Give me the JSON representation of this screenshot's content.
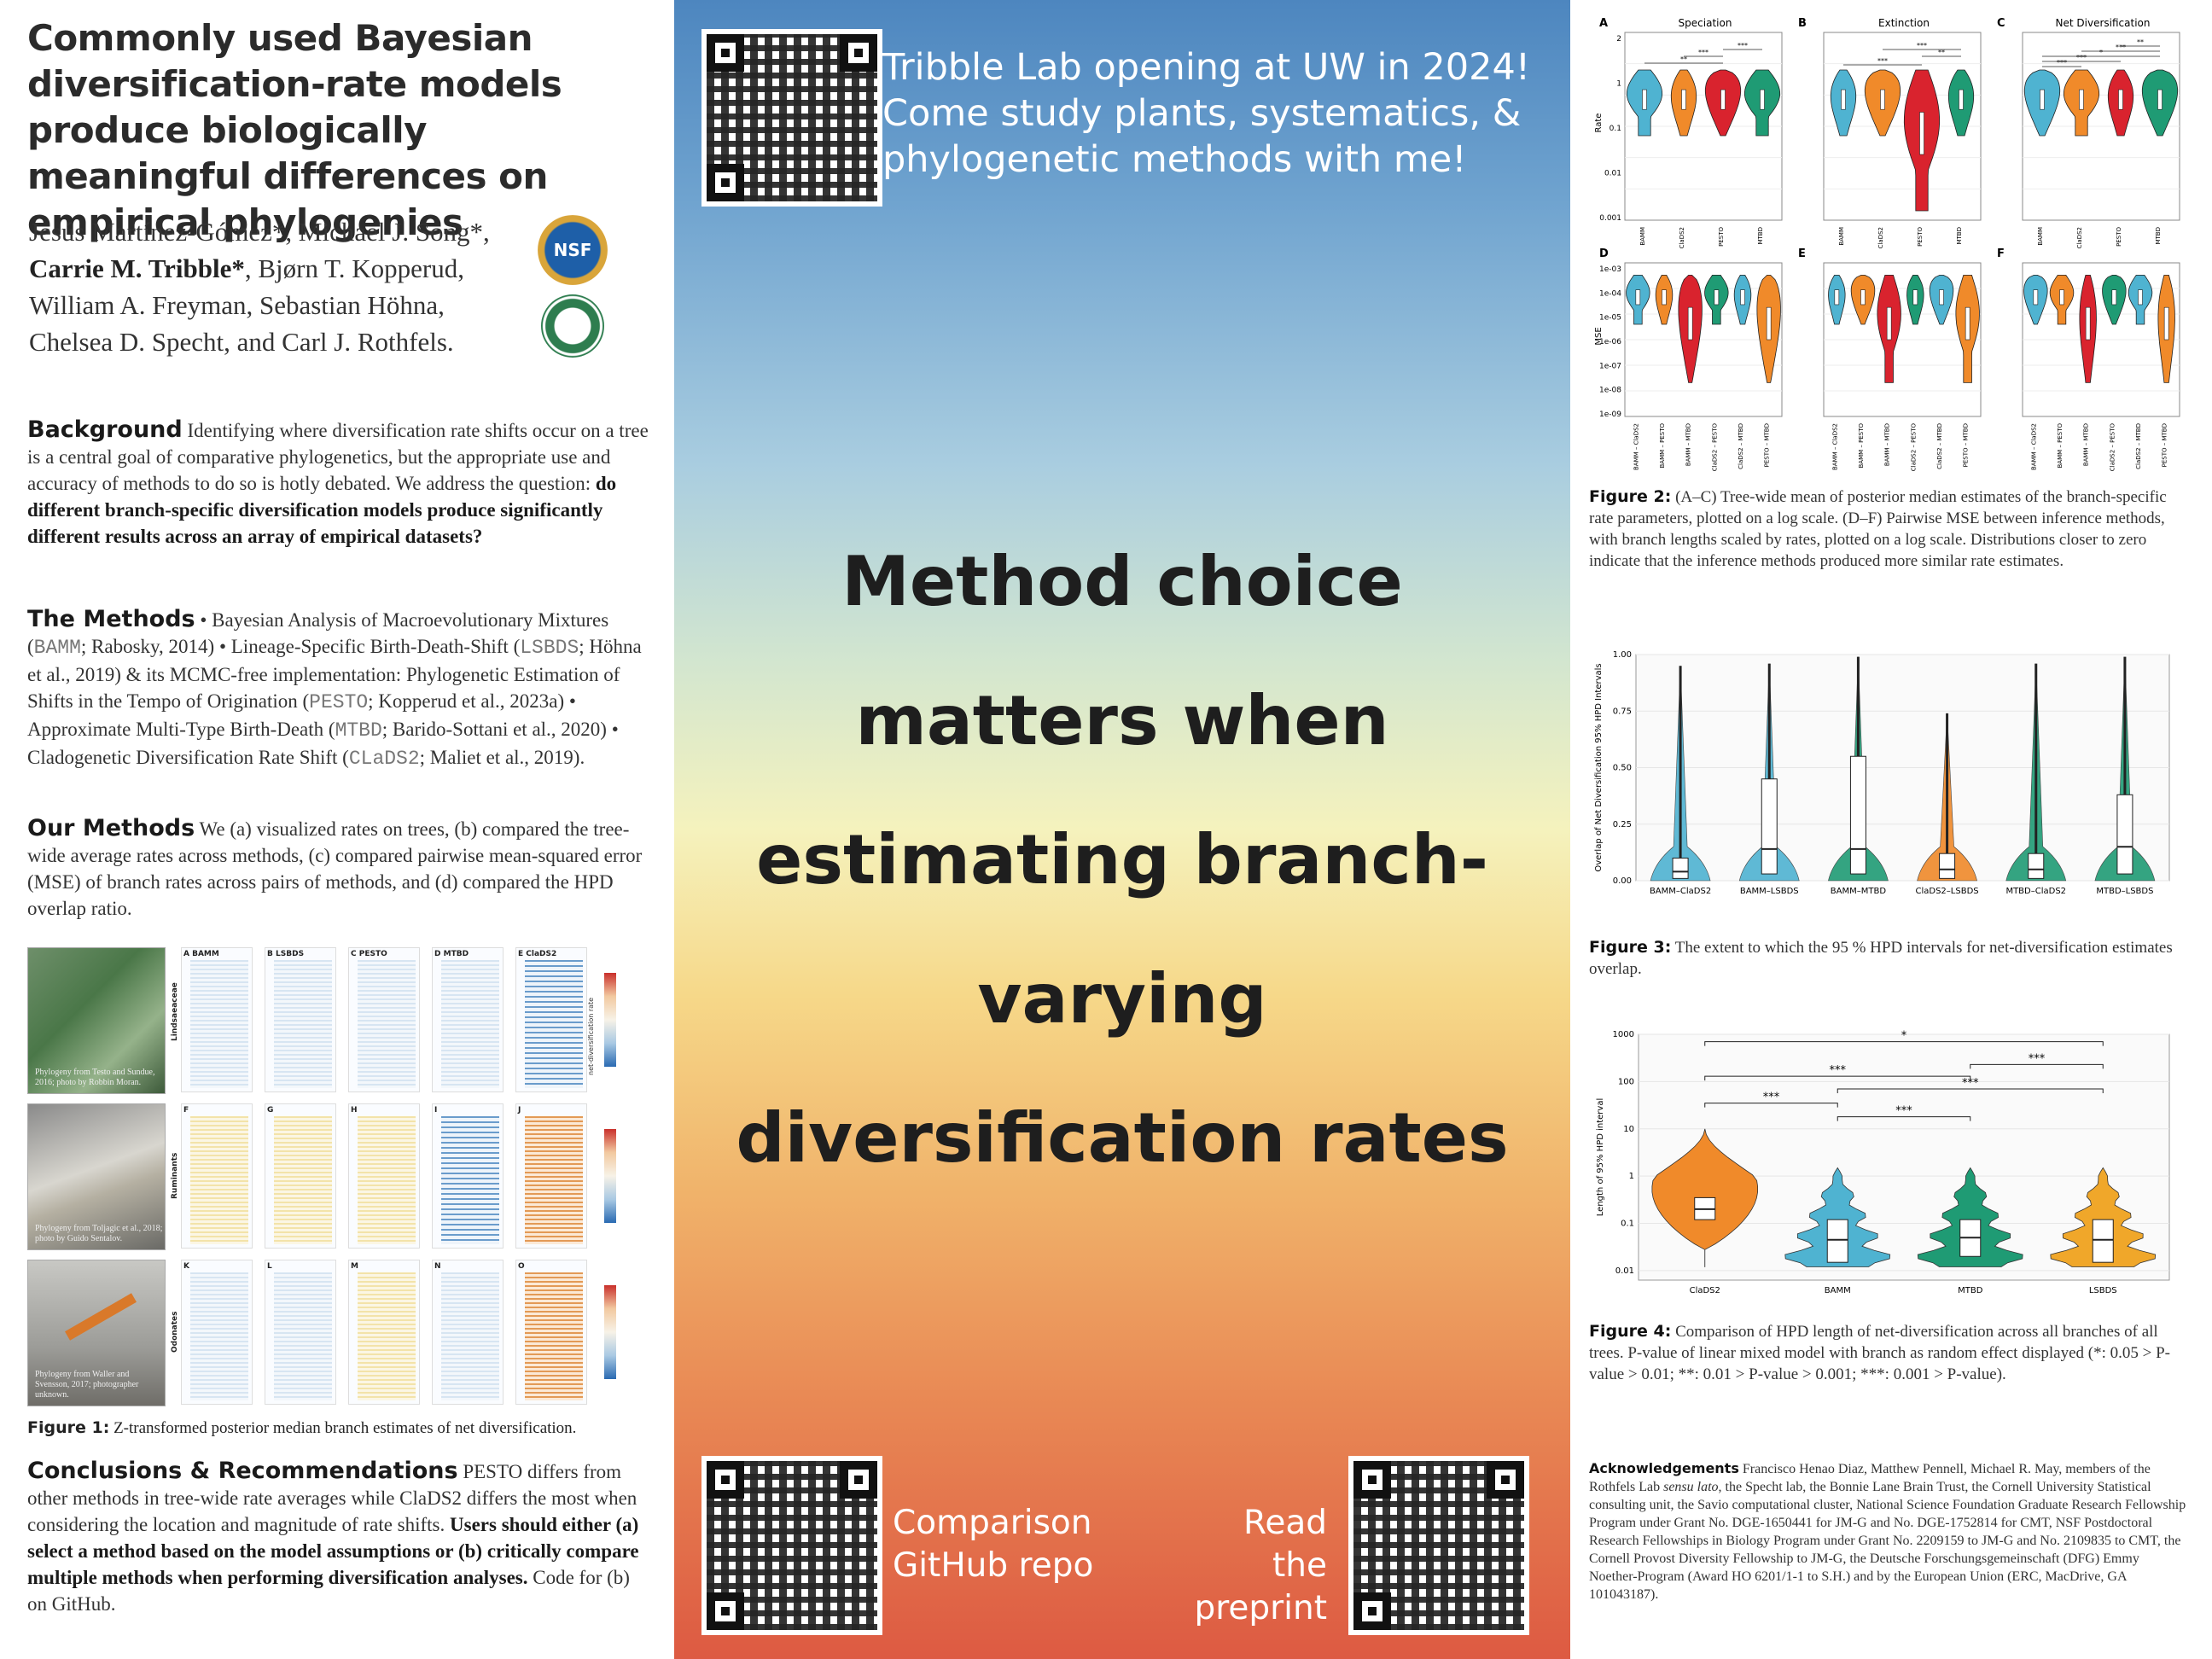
{
  "title": "Commonly used Bayesian diversification-rate models produce biologically meaningful differences on empirical phylogenies",
  "authors": {
    "line1": "Jesús Martínez-Gómez*, Michael J. Song*,",
    "line2_bold": "Carrie M. Tribble*",
    "line2_rest": ", Bjørn T. Kopperud,",
    "line3": "William A. Freyman, Sebastian Höhna,",
    "line4": "Chelsea D. Specht, and Carl J. Rothfels."
  },
  "logos": {
    "nsf": "NSF"
  },
  "background": {
    "heading": "Background",
    "text": " Identifying where diversification rate shifts occur on a tree is a central goal of comparative phylogenetics, but the appropriate use and accuracy of methods to do so is hotly debated. We address the question: ",
    "bold": "do different branch-specific diversification models produce significantly different results across an array of empirical datasets?"
  },
  "methods": {
    "heading": "The Methods",
    "t1": " • Bayesian Analysis of Macroevolutionary Mixtures (",
    "m1": "BAMM",
    "t2": "; Rabosky, 2014) • Lineage-Specific Birth-Death-Shift (",
    "m2": "LSBDS",
    "t3": "; Höhna et al., 2019) & its MCMC-free implementation: Phylogenetic Estimation of Shifts in the Tempo of Origination (",
    "m3": "PESTO",
    "t4": "; Kopperud et al., 2023a) • Approximate Multi-Type Birth-Death (",
    "m4": "MTBD",
    "t5": "; Barido-Sottani et al., 2020) • Cladogenetic Diversification Rate Shift (",
    "m5": "CLaDS2",
    "t6": "; Maliet et al., 2019)."
  },
  "our_methods": {
    "heading": "Our Methods",
    "text": " We (a) visualized rates on trees, (b) compared the tree-wide average rates across methods, (c) compared pairwise mean-squared error (MSE) of branch rates across pairs of methods, and (d) compared the HPD overlap ratio."
  },
  "figure1": {
    "columns": [
      "BAMM",
      "LSBDS",
      "PESTO",
      "MTBD",
      "ClaDS2"
    ],
    "row_labels": [
      "Lindsaeaceae",
      "Ruminants",
      "Odonates"
    ],
    "panel_letters": [
      "A",
      "B",
      "C",
      "D",
      "E",
      "F",
      "G",
      "H",
      "I",
      "J",
      "K",
      "L",
      "M",
      "N",
      "O"
    ],
    "photo_credits": [
      "Phylogeny from Testo and Sundue, 2016; photo by Robbin Moran.",
      "Phylogeny from Toljagic et al., 2018; photo by Guido Sentalov.",
      "Phylogeny from Waller and Svensson, 2017; photographer unknown."
    ],
    "colorbar_label": "net-diversification rate",
    "caption_label": "Figure 1:",
    "caption_text": " Z-transformed posterior median branch estimates of net diversification."
  },
  "conclusions": {
    "heading": "Conclusions & Recommendations",
    "text": " PESTO differs from other methods in tree-wide rate averages while ClaDS2 differs the most when considering the location and magnitude of rate shifts. ",
    "bold": "Users should either (a) select a method based on the model assumptions or (b) critically compare multiple methods when performing diversification analyses.",
    "tail": " Code for (b) on GitHub."
  },
  "middle": {
    "lab_announcement": [
      "Tribble Lab opening at UW in 2024!",
      "Come study plants, systematics, &",
      "phylogenetic methods with me!"
    ],
    "headline": [
      "Method choice",
      "matters when",
      "estimating branch-",
      "varying",
      "diversification rates"
    ],
    "link_github": [
      "Comparison",
      "GitHub repo"
    ],
    "link_preprint": [
      "Read the",
      "preprint"
    ]
  },
  "figure2": {
    "top_titles": [
      "Speciation",
      "Extinction",
      "Net Diversification"
    ],
    "panel_letters": [
      "A",
      "B",
      "C",
      "D",
      "E",
      "F"
    ],
    "top_ylabel": "Rate",
    "top_yticks": [
      "2",
      "1",
      "0.1",
      "0.01",
      "0.001"
    ],
    "top_xticks": [
      "BAMM",
      "ClaDS2",
      "PESTO",
      "MTBD"
    ],
    "bottom_ylabel": "MSE",
    "bottom_yticks": [
      "1e-03",
      "1e-04",
      "1e-05",
      "1e-06",
      "1e-07",
      "1e-08",
      "1e-09"
    ],
    "bottom_xticks": [
      "BAMM – ClaDS2",
      "BAMM – PESTO",
      "BAMM – MTBD",
      "ClaDS2 – PESTO",
      "ClaDS2 – MTBD",
      "PESTO – MTBD"
    ],
    "sig": [
      "**",
      "***",
      "***",
      "***",
      "**",
      "***",
      "***",
      "***",
      "*",
      "***",
      "**"
    ],
    "violin_colors": [
      "#4fb3d1",
      "#f08a2a",
      "#d9232e",
      "#1f9b74"
    ],
    "caption_label": "Figure 2:",
    "caption_text": " (A–C) Tree-wide mean of posterior median estimates of the branch-specific rate parameters, plotted on a log scale. (D–F) Pairwise MSE between inference methods, with branch lengths scaled by rates, plotted on a log scale. Distributions closer to zero indicate that the inference methods produced more similar rate estimates."
  },
  "chart_data": [
    {
      "type": "box",
      "title": "",
      "ylabel": "Overlap of Net Diversification 95% HPD Intervals",
      "xlabel": "",
      "ylim": [
        0,
        1
      ],
      "yticks": [
        "0.00",
        "0.25",
        "0.50",
        "0.75",
        "1.00"
      ],
      "categories": [
        "BAMM–ClaDS2",
        "BAMM–LSBDS",
        "BAMM–MTBD",
        "ClaDS2–LSBDS",
        "MTBD–ClaDS2",
        "MTBD–LSBDS"
      ],
      "median": [
        0.04,
        0.14,
        0.14,
        0.05,
        0.05,
        0.15
      ],
      "q1": [
        0.01,
        0.03,
        0.03,
        0.01,
        0.01,
        0.03
      ],
      "q3": [
        0.1,
        0.45,
        0.55,
        0.12,
        0.12,
        0.38
      ],
      "max": [
        0.95,
        0.96,
        0.99,
        0.74,
        0.96,
        0.99
      ],
      "colors": [
        "#4fb3d1",
        "#4fb3d1",
        "#1f9b74",
        "#f08a2a",
        "#1f9b74",
        "#1f9b74"
      ],
      "caption_label": "Figure 3:",
      "caption_text": " The extent to which the 95 % HPD intervals for net-diversification estimates overlap."
    },
    {
      "type": "violin",
      "title": "",
      "ylabel": "Length of 95% HPD interval",
      "xlabel": "",
      "log_y": true,
      "ylim": [
        0.01,
        1000
      ],
      "yticks": [
        "1000",
        "100",
        "10",
        "1",
        "0.1",
        "0.01"
      ],
      "categories": [
        "ClaDS2",
        "BAMM",
        "MTBD",
        "LSBDS"
      ],
      "median": [
        0.2,
        0.045,
        0.05,
        0.045
      ],
      "q1": [
        0.12,
        0.015,
        0.02,
        0.015
      ],
      "q3": [
        0.35,
        0.12,
        0.12,
        0.12
      ],
      "colors": [
        "#f08a2a",
        "#4fb3d1",
        "#1f9b74",
        "#f0a72a"
      ],
      "significance": [
        {
          "from": "ClaDS2",
          "to": "LSBDS",
          "label": "*"
        },
        {
          "from": "MTBD",
          "to": "LSBDS",
          "label": "***"
        },
        {
          "from": "ClaDS2",
          "to": "MTBD",
          "label": "***"
        },
        {
          "from": "BAMM",
          "to": "LSBDS",
          "label": "***"
        },
        {
          "from": "ClaDS2",
          "to": "BAMM",
          "label": "***"
        },
        {
          "from": "BAMM",
          "to": "MTBD",
          "label": "***"
        }
      ],
      "caption_label": "Figure 4:",
      "caption_text": " Comparison of HPD length of net-diversification across all branches of all trees. P-value of linear mixed model with branch as random effect displayed (*: 0.05 > P-value > 0.01; **: 0.01 > P-value > 0.001; ***: 0.001 > P-value)."
    }
  ],
  "acknowledgements": {
    "heading": "Acknowledgements",
    "t1": " Francisco Henao Diaz, Matthew Pennell, Michael R. May, members of the Rothfels Lab ",
    "italic": "sensu lato",
    "t2": ", the Specht lab, the Bonnie Lane Brain Trust, the Cornell University Statistical consulting unit, the Savio computational cluster, National Science Foundation Graduate Research Fellowship Program under Grant No. DGE-1650441 for JM-G and No. DGE-1752814 for CMT, NSF Postdoctoral Research Fellowships in Biology Program under Grant No. 2209159 to JM-G and No. 2109835 to CMT, the Cornell Provost Diversity Fellowship to JM-G, the Deutsche Forschungsgemeinschaft (DFG) Emmy Noether-Program (Award HO 6201/1-1 to S.H.) and by the European Union (ERC, MacDrive, GA 101043187)."
  }
}
